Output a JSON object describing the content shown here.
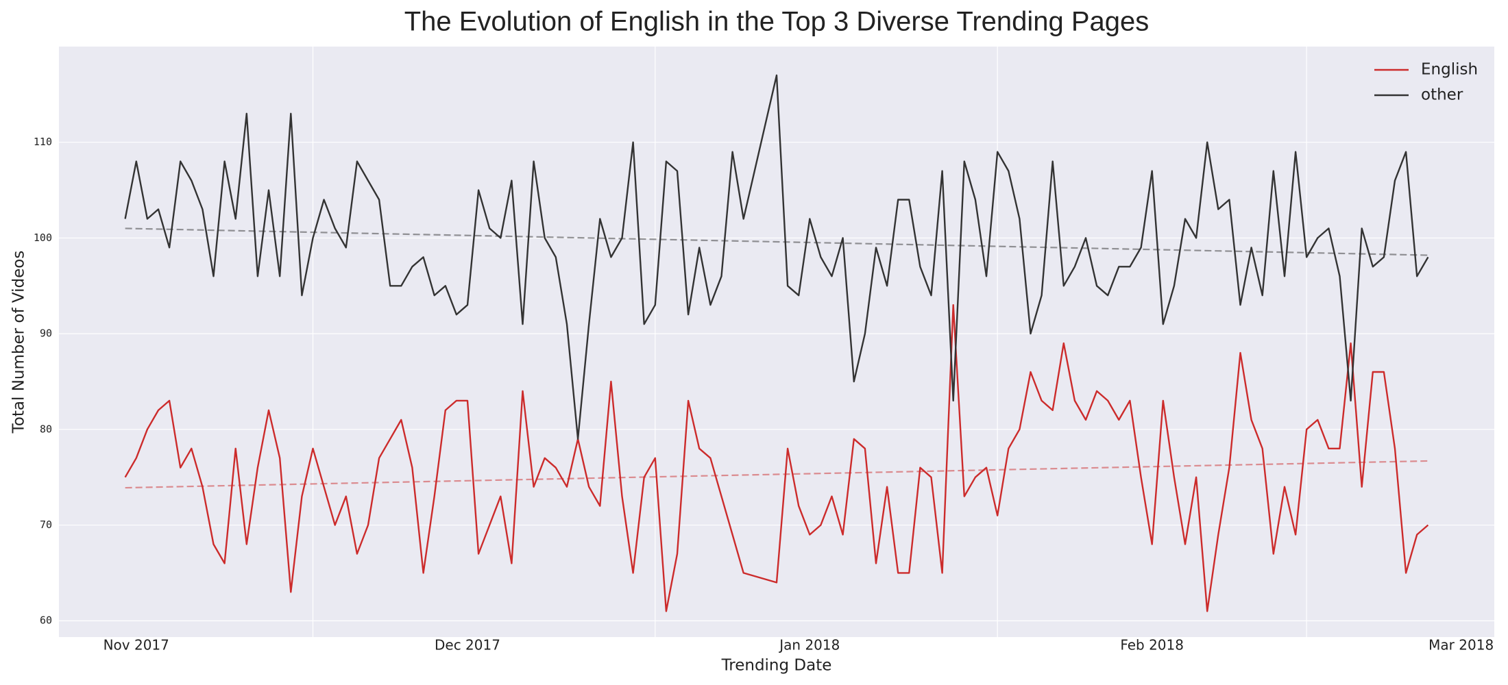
{
  "chart_data": {
    "type": "line",
    "title": "The Evolution of English in the Top 3 Diverse Trending Pages",
    "x_label": "Trending Date",
    "y_label": "Total Number of Videos",
    "x": [
      "2017-11-14",
      "2017-11-15",
      "2017-11-16",
      "2017-11-17",
      "2017-11-18",
      "2017-11-19",
      "2017-11-20",
      "2017-11-21",
      "2017-11-22",
      "2017-11-23",
      "2017-11-24",
      "2017-11-25",
      "2017-11-26",
      "2017-11-27",
      "2017-11-28",
      "2017-11-29",
      "2017-11-30",
      "2017-12-01",
      "2017-12-02",
      "2017-12-03",
      "2017-12-04",
      "2017-12-05",
      "2017-12-06",
      "2017-12-07",
      "2017-12-08",
      "2017-12-09",
      "2017-12-10",
      "2017-12-11",
      "2017-12-12",
      "2017-12-13",
      "2017-12-14",
      "2017-12-15",
      "2017-12-16",
      "2017-12-17",
      "2017-12-18",
      "2017-12-19",
      "2017-12-20",
      "2017-12-21",
      "2017-12-22",
      "2017-12-23",
      "2017-12-24",
      "2017-12-25",
      "2017-12-26",
      "2017-12-27",
      "2017-12-28",
      "2017-12-29",
      "2017-12-30",
      "2017-12-31",
      "2018-01-01",
      "2018-01-02",
      "2018-01-03",
      "2018-01-04",
      "2018-01-05",
      "2018-01-06",
      "2018-01-07",
      "2018-01-08",
      "2018-01-09",
      "2018-01-12",
      "2018-01-13",
      "2018-01-14",
      "2018-01-15",
      "2018-01-16",
      "2018-01-17",
      "2018-01-18",
      "2018-01-19",
      "2018-01-20",
      "2018-01-21",
      "2018-01-22",
      "2018-01-23",
      "2018-01-24",
      "2018-01-25",
      "2018-01-26",
      "2018-01-27",
      "2018-01-28",
      "2018-01-29",
      "2018-01-30",
      "2018-01-31",
      "2018-02-01",
      "2018-02-02",
      "2018-02-03",
      "2018-02-04",
      "2018-02-05",
      "2018-02-06",
      "2018-02-07",
      "2018-02-08",
      "2018-02-09",
      "2018-02-10",
      "2018-02-11",
      "2018-02-12",
      "2018-02-13",
      "2018-02-14",
      "2018-02-15",
      "2018-02-16",
      "2018-02-17",
      "2018-02-18",
      "2018-02-19",
      "2018-02-20",
      "2018-02-21",
      "2018-02-22",
      "2018-02-23",
      "2018-02-24",
      "2018-02-25",
      "2018-02-26",
      "2018-02-27",
      "2018-02-28",
      "2018-03-01",
      "2018-03-02",
      "2018-03-03",
      "2018-03-04",
      "2018-03-05",
      "2018-03-06",
      "2018-03-07",
      "2018-03-08",
      "2018-03-09",
      "2018-03-10",
      "2018-03-11",
      "2018-03-12"
    ],
    "series": [
      {
        "name": "English",
        "color": "#cc2b2b",
        "trend": [
          73.9,
          76.7
        ],
        "values": [
          75,
          77,
          80,
          82,
          83,
          76,
          78,
          74,
          68,
          66,
          78,
          68,
          76,
          82,
          77,
          63,
          73,
          78,
          74,
          70,
          73,
          67,
          70,
          77,
          79,
          81,
          76,
          65,
          73,
          82,
          83,
          83,
          67,
          70,
          73,
          66,
          84,
          74,
          77,
          76,
          74,
          79,
          74,
          72,
          85,
          73,
          65,
          75,
          77,
          61,
          67,
          83,
          78,
          77,
          73,
          69,
          65,
          64,
          78,
          72,
          69,
          70,
          73,
          69,
          79,
          78,
          66,
          74,
          65,
          65,
          76,
          75,
          65,
          93,
          73,
          75,
          76,
          71,
          78,
          80,
          86,
          83,
          82,
          89,
          83,
          81,
          84,
          83,
          81,
          83,
          75,
          68,
          83,
          75,
          68,
          75,
          61,
          69,
          76,
          88,
          81,
          78,
          67,
          74,
          69,
          80,
          81,
          78,
          78,
          89,
          74,
          86,
          86,
          78,
          65,
          69,
          70
        ]
      },
      {
        "name": "other",
        "color": "#333333",
        "trend": [
          101,
          98.2
        ],
        "values": [
          102,
          108,
          102,
          103,
          99,
          108,
          106,
          103,
          96,
          108,
          102,
          113,
          96,
          105,
          96,
          113,
          94,
          100,
          104,
          101,
          99,
          108,
          106,
          104,
          95,
          95,
          97,
          98,
          94,
          95,
          92,
          93,
          105,
          101,
          100,
          106,
          91,
          108,
          100,
          98,
          91,
          79,
          91,
          102,
          98,
          100,
          110,
          91,
          93,
          108,
          107,
          92,
          99,
          93,
          96,
          109,
          102,
          117,
          95,
          94,
          102,
          98,
          96,
          100,
          85,
          90,
          99,
          95,
          104,
          104,
          97,
          94,
          107,
          83,
          108,
          104,
          96,
          109,
          107,
          102,
          90,
          94,
          108,
          95,
          97,
          100,
          95,
          94,
          97,
          97,
          99,
          107,
          91,
          95,
          102,
          100,
          110,
          103,
          104,
          93,
          99,
          94,
          107,
          96,
          109,
          98,
          100,
          101,
          96,
          83,
          101,
          97,
          98,
          106,
          109,
          96,
          98
        ]
      }
    ],
    "xlim": [
      "2017-11-08",
      "2018-03-18"
    ],
    "xticks": [
      {
        "value": "2017-11-15",
        "label": "Nov 2017"
      },
      {
        "value": "2017-12-15",
        "label": "Dec 2017"
      },
      {
        "value": "2018-01-15",
        "label": "Jan 2018"
      },
      {
        "value": "2018-02-15",
        "label": "Feb 2018"
      },
      {
        "value": "2018-03-15",
        "label": "Mar 2018"
      }
    ],
    "xgrid": [
      "2017-12-01",
      "2018-01-01",
      "2018-02-01",
      "2018-03-01"
    ],
    "ylim": [
      58.3,
      120
    ],
    "yticks": [
      60,
      70,
      80,
      90,
      100,
      110
    ],
    "grid": true,
    "legend": "upper right"
  }
}
